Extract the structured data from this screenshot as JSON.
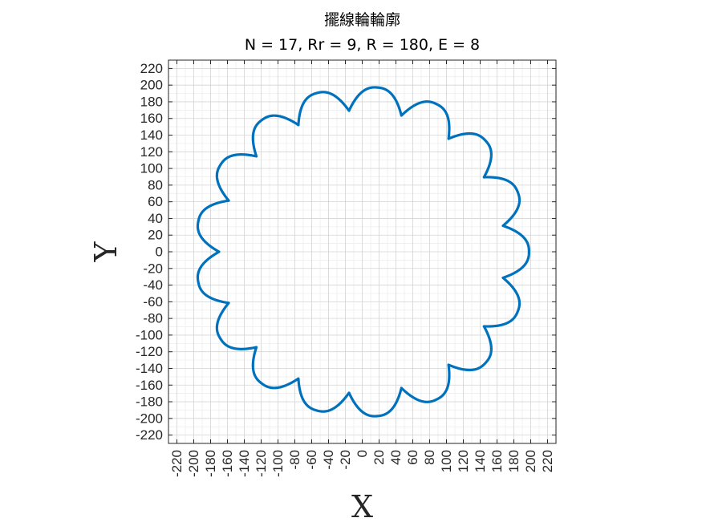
{
  "chart_data": {
    "type": "line",
    "title": "擺線輪輪廓",
    "subtitle": "N = 17, Rr = 9, R = 180, E = 8",
    "xlabel": "X",
    "ylabel": "Y",
    "xlim": [
      -230,
      230
    ],
    "ylim": [
      -230,
      230
    ],
    "xticks": [
      -220,
      -200,
      -180,
      -160,
      -140,
      -120,
      -100,
      -80,
      -60,
      -40,
      -20,
      0,
      20,
      40,
      60,
      80,
      100,
      120,
      140,
      160,
      180,
      200,
      220
    ],
    "yticks": [
      -220,
      -200,
      -180,
      -160,
      -140,
      -120,
      -100,
      -80,
      -60,
      -40,
      -20,
      0,
      20,
      40,
      60,
      80,
      100,
      120,
      140,
      160,
      180,
      200,
      220
    ],
    "grid": true,
    "minor_grid": true,
    "series": [
      {
        "color": "#0072bd",
        "curve": "cycloidal gear profile",
        "lobes": 17,
        "max_radius": 198,
        "min_radius": 170,
        "phase_degrees": 0
      }
    ]
  }
}
